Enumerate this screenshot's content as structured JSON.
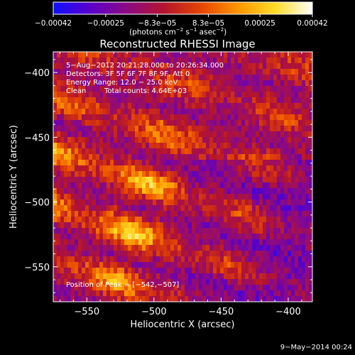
{
  "chart_data": {
    "type": "heatmap",
    "title": "Reconstructed RHESSI Image",
    "xlabel": "Heliocentric X (arcsec)",
    "ylabel": "Heliocentric Y (arcsec)",
    "xlim": [
      -575,
      -382
    ],
    "ylim": [
      -577,
      -384
    ],
    "x_ticks": [
      -550,
      -500,
      -450,
      -400
    ],
    "y_ticks": [
      -550,
      -500,
      -450,
      -400
    ],
    "x_tick_labels": [
      "−550",
      "−500",
      "−450",
      "−400"
    ],
    "y_tick_labels": [
      "−550",
      "−500",
      "−450",
      "−400"
    ],
    "colorbar": {
      "range": [
        -0.00042,
        0.00042
      ],
      "ticks": [
        -0.00042,
        -0.00025,
        -8.3e-05,
        8.3e-05,
        0.00025,
        0.00042
      ],
      "tick_labels": [
        "−0.00042",
        "−0.00025",
        "−8.3e−05",
        "8.3e−05",
        "0.00025",
        "0.00042"
      ],
      "unit_prefix": "(photons cm",
      "unit_exp1": "−2",
      "unit_mid": " s",
      "unit_exp2": "−1",
      "unit_suffix": " asec",
      "unit_exp3": "−2",
      "unit_close": ")"
    },
    "annotations": {
      "time_range": "5−Aug−2012 20:21:28.000 to 20:26:34.000",
      "detectors": "Detectors: 3F 5F 6F 7F 8F 9F, Att 0",
      "energy": "Energy Range: 12.0 − 25.0 keV",
      "algorithm": "Clean",
      "total_counts": "Total counts: 4.64E+03",
      "peak": "Position of Peak = [−542,−507]"
    },
    "peak_position": [
      -542,
      -507
    ],
    "colormap": [
      "#1010ff",
      "#5a00c8",
      "#8c0a82",
      "#b4142d",
      "#e64600",
      "#ff9600",
      "#ffdc28",
      "#ffffff"
    ]
  },
  "footer": {
    "date": "9−May−2014 00:24"
  }
}
